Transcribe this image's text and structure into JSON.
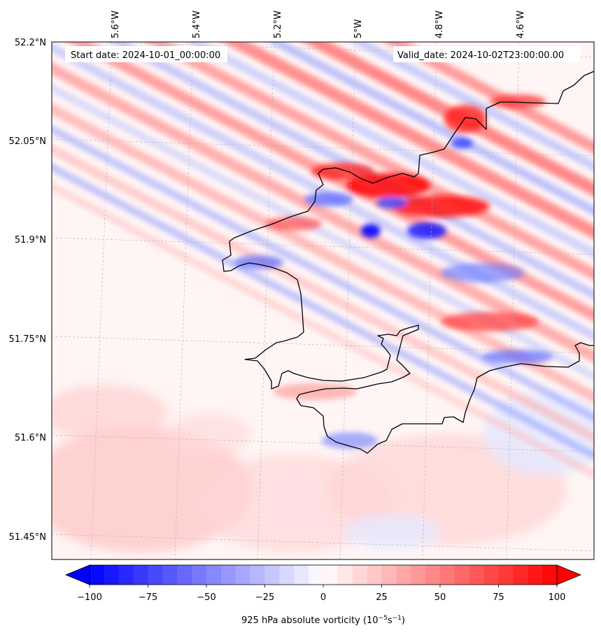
{
  "header": {
    "start_date": "Start date: 2024-10-01_00:00:00",
    "valid_date": "Valid_date: 2024-10-02T23:00:00.00"
  },
  "longitude_labels": [
    "5.6°W",
    "5.4°W",
    "5.2°W",
    "5°W",
    "4.8°W",
    "4.6°W"
  ],
  "latitude_labels": [
    "52.2°N",
    "52.05°N",
    "51.9°N",
    "51.75°N",
    "51.6°N",
    "51.45°N"
  ],
  "colorbar": {
    "ticks": [
      "−100",
      "−75",
      "−50",
      "−25",
      "0",
      "25",
      "50",
      "75",
      "100"
    ],
    "label_main": "925 hPa absolute vorticity (10",
    "label_exp1": "−5",
    "label_mid": "s",
    "label_exp2": "−1",
    "label_end": ")",
    "min": -100,
    "max": 100,
    "step": 6.25,
    "neg_color": "#0000ff",
    "pos_color": "#ff0000"
  },
  "colors": {
    "coastline": "#000000",
    "gridline": "#b0b0b0"
  }
}
